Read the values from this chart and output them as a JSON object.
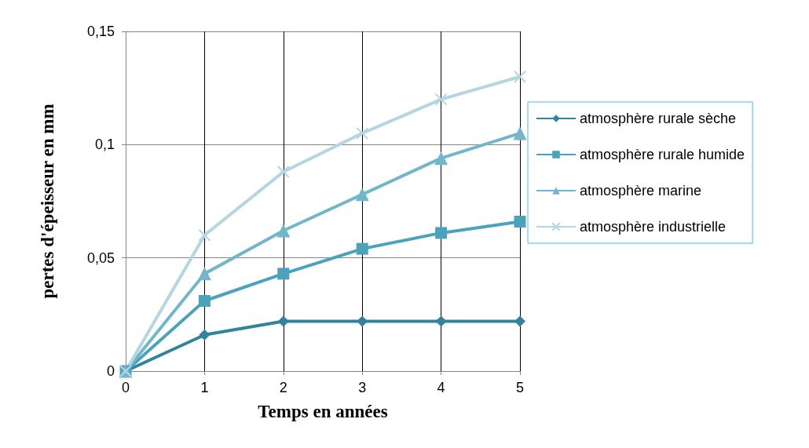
{
  "chart_data": {
    "type": "line",
    "xlabel": "Temps en années",
    "ylabel": "pertes d'épeisseur en mm",
    "x": [
      0,
      1,
      2,
      3,
      4,
      5
    ],
    "series": [
      {
        "name": "atmosphère rurale sèche",
        "color": "#31849b",
        "marker": "diamond",
        "values": [
          0,
          0.016,
          0.022,
          0.022,
          0.022,
          0.022
        ]
      },
      {
        "name": "atmosphère rurale humide",
        "color": "#4aa3bd",
        "marker": "square",
        "values": [
          0,
          0.031,
          0.043,
          0.054,
          0.061,
          0.066
        ]
      },
      {
        "name": "atmosphère marine",
        "color": "#72b6cc",
        "marker": "triangle",
        "values": [
          0,
          0.043,
          0.062,
          0.078,
          0.094,
          0.105
        ]
      },
      {
        "name": "atmosphère industrielle",
        "color": "#b4d5e2",
        "marker": "cross",
        "values": [
          0,
          0.06,
          0.088,
          0.105,
          0.12,
          0.13
        ]
      }
    ],
    "xlim": [
      0,
      5
    ],
    "xticks": [
      0,
      1,
      2,
      3,
      4,
      5
    ],
    "ylim": [
      0,
      0.15
    ],
    "yticks": [
      0,
      {
        "value": 0.05,
        "label": "0,05"
      },
      {
        "value": 0.1,
        "label": "0,1"
      },
      {
        "value": 0.15,
        "label": "0,15"
      }
    ],
    "grid": true,
    "legend": "right",
    "line_style": "solid"
  }
}
